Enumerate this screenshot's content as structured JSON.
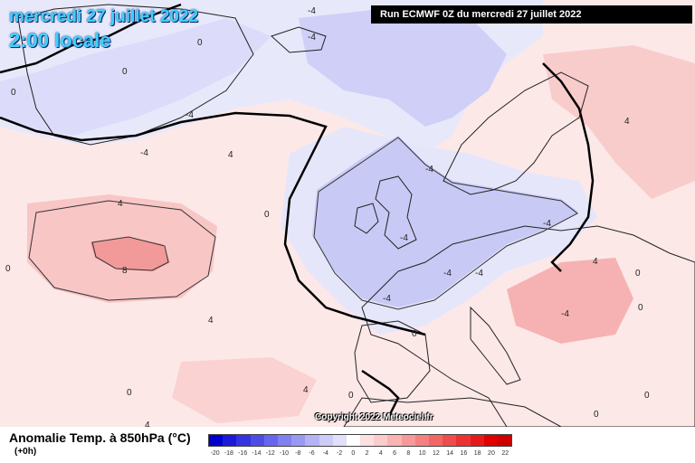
{
  "header": {
    "date_title": "mercredi 27 juillet 2022",
    "time_title": "2:00 locale",
    "run_info": "Run ECMWF 0Z du mercredi 27 juillet 2022",
    "copyright": "Copyright 2022 Meteociel.fr"
  },
  "legend": {
    "title": "Anomalie Temp. à 850hPa (°C)",
    "subtitle": "(+0h)",
    "ticks": [
      "-20",
      "-18",
      "-16",
      "-14",
      "-12",
      "-10",
      "-8",
      "-6",
      "-4",
      "-2",
      "0",
      "2",
      "4",
      "6",
      "8",
      "10",
      "12",
      "14",
      "16",
      "18",
      "20",
      "22"
    ],
    "colors": [
      "#0000cc",
      "#1a1ad8",
      "#3333e0",
      "#4d4de6",
      "#6666ec",
      "#8080f0",
      "#9999f2",
      "#b3b3f5",
      "#ccccf8",
      "#e0e0fb",
      "#ffffff",
      "#fde0e0",
      "#fccccc",
      "#fab3b3",
      "#f79999",
      "#f58080",
      "#f26666",
      "#ef4d4d",
      "#ec3333",
      "#e61a1a",
      "#e00000",
      "#cc0000"
    ]
  },
  "map_labels": {
    "contour_values": [
      "0",
      "0",
      "0",
      "0",
      "-4",
      "-4",
      "-4",
      "-4",
      "4",
      "4",
      "8",
      "4",
      "0",
      "-4",
      "-4",
      "-4",
      "-4",
      "-4",
      "-4",
      "0",
      "4",
      "4",
      "0",
      "0",
      "0",
      "4",
      "4",
      "0",
      "0",
      "0",
      "-4"
    ]
  },
  "colors": {
    "ocean_warm": "#fde4e4",
    "ocean_cold": "#e6e6fb",
    "cold_core": "#c8c8f6",
    "warm_core": "#f8b0b0",
    "title_cyan": "#3fd0ff"
  }
}
